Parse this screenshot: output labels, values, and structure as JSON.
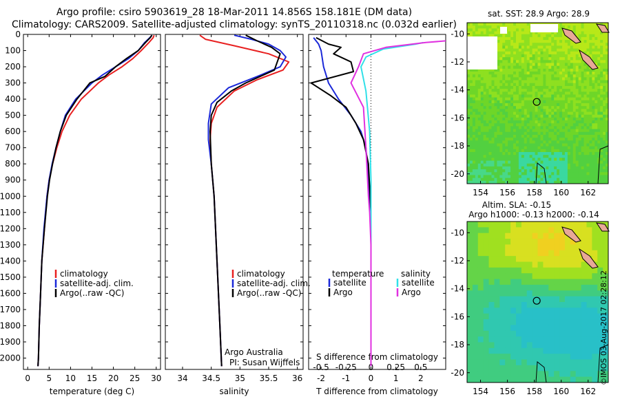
{
  "title": {
    "line1": "Argo profile: csiro 5903619_28 18-Mar-2011 14.856S 158.181E (DM data)",
    "line2": "Climatology: CARS2009. Satellite-adjusted climatology: synTS_20110318.nc (0.032d earlier)"
  },
  "colors": {
    "climatology": "#e82020",
    "satellite": "#1a28d8",
    "argo": "#000000",
    "satellite_salinity": "#30e0e8",
    "argo_salinity": "#e030e0"
  },
  "chart_data": [
    {
      "type": "line",
      "id": "temperature",
      "xlabel": "temperature (deg C)",
      "xlim": [
        -1,
        31
      ],
      "xticks": [
        0,
        5,
        10,
        15,
        20,
        25,
        30
      ],
      "ylim": [
        0,
        2070
      ],
      "yticks": [
        0,
        100,
        200,
        300,
        400,
        500,
        600,
        700,
        800,
        900,
        1000,
        1100,
        1200,
        1300,
        1400,
        1500,
        1600,
        1700,
        1800,
        1900,
        2000
      ],
      "legend": {
        "position": "lower-right",
        "entries": [
          "climatology",
          "satellite-adj. clim.",
          "Argo(..raw -QC)"
        ]
      },
      "series": [
        {
          "name": "climatology",
          "color": "#e82020",
          "points": [
            [
              29.5,
              5
            ],
            [
              29.3,
              20
            ],
            [
              28.3,
              50
            ],
            [
              26.5,
              100
            ],
            [
              24.5,
              150
            ],
            [
              22,
              200
            ],
            [
              19,
              250
            ],
            [
              16.5,
              300
            ],
            [
              12.5,
              400
            ],
            [
              9.8,
              500
            ],
            [
              8,
              600
            ],
            [
              6.8,
              700
            ],
            [
              5.8,
              800
            ],
            [
              5,
              900
            ],
            [
              4.5,
              1000
            ],
            [
              3.9,
              1200
            ],
            [
              3.3,
              1400
            ],
            [
              3,
              1600
            ],
            [
              2.7,
              1800
            ],
            [
              2.5,
              2000
            ],
            [
              2.4,
              2050
            ]
          ]
        },
        {
          "name": "satellite-adj. clim.",
          "color": "#1a28d8",
          "points": [
            [
              29,
              5
            ],
            [
              28.5,
              20
            ],
            [
              27.3,
              50
            ],
            [
              25.8,
              100
            ],
            [
              23.5,
              150
            ],
            [
              20.5,
              200
            ],
            [
              17.5,
              250
            ],
            [
              15,
              300
            ],
            [
              11.2,
              400
            ],
            [
              8.8,
              500
            ],
            [
              7.6,
              600
            ],
            [
              6.6,
              700
            ],
            [
              5.7,
              800
            ],
            [
              5,
              900
            ],
            [
              4.5,
              1000
            ],
            [
              3.8,
              1200
            ],
            [
              3.3,
              1400
            ],
            [
              3,
              1600
            ],
            [
              2.7,
              1800
            ],
            [
              2.5,
              2000
            ],
            [
              2.4,
              2050
            ]
          ]
        },
        {
          "name": "Argo(..raw -QC)",
          "color": "#000000",
          "points": [
            [
              29,
              5
            ],
            [
              28.6,
              20
            ],
            [
              27.5,
              50
            ],
            [
              25.8,
              100
            ],
            [
              23,
              150
            ],
            [
              20.5,
              200
            ],
            [
              18,
              260
            ],
            [
              14.5,
              300
            ],
            [
              11.5,
              400
            ],
            [
              9,
              500
            ],
            [
              7.6,
              600
            ],
            [
              6.6,
              700
            ],
            [
              5.8,
              800
            ],
            [
              5.1,
              900
            ],
            [
              4.6,
              1000
            ],
            [
              3.9,
              1200
            ],
            [
              3.3,
              1400
            ],
            [
              3,
              1600
            ],
            [
              2.7,
              1800
            ],
            [
              2.5,
              2000
            ],
            [
              2.4,
              2050
            ]
          ]
        }
      ]
    },
    {
      "type": "line",
      "id": "salinity",
      "xlabel": "salinity",
      "xlim": [
        33.7,
        36.1
      ],
      "xticks": [
        34,
        34.5,
        35,
        35.5,
        36
      ],
      "ylim": [
        0,
        2070
      ],
      "legend": {
        "position": "lower-right",
        "entries": [
          "climatology",
          "satellite-adj. clim.",
          "Argo(..raw -QC)"
        ]
      },
      "annotation": {
        "line1": "Argo Australia",
        "line2": "PI: Susan Wijffels"
      },
      "series": [
        {
          "name": "climatology",
          "color": "#e82020",
          "points": [
            [
              34.3,
              5
            ],
            [
              34.4,
              30
            ],
            [
              34.9,
              70
            ],
            [
              35.5,
              120
            ],
            [
              35.85,
              170
            ],
            [
              35.75,
              220
            ],
            [
              35.3,
              280
            ],
            [
              34.9,
              350
            ],
            [
              34.6,
              450
            ],
            [
              34.5,
              550
            ],
            [
              34.48,
              650
            ],
            [
              34.5,
              800
            ],
            [
              34.55,
              1000
            ],
            [
              34.6,
              1400
            ],
            [
              34.65,
              1800
            ],
            [
              34.68,
              2050
            ]
          ]
        },
        {
          "name": "satellite-adj. clim.",
          "color": "#1a28d8",
          "points": [
            [
              34.9,
              5
            ],
            [
              35.2,
              30
            ],
            [
              35.5,
              60
            ],
            [
              35.7,
              100
            ],
            [
              35.8,
              140
            ],
            [
              35.7,
              200
            ],
            [
              35.3,
              260
            ],
            [
              34.8,
              330
            ],
            [
              34.5,
              430
            ],
            [
              34.45,
              550
            ],
            [
              34.45,
              650
            ],
            [
              34.5,
              800
            ],
            [
              34.55,
              1000
            ],
            [
              34.6,
              1400
            ],
            [
              34.65,
              1800
            ],
            [
              34.68,
              2050
            ]
          ]
        },
        {
          "name": "Argo(..raw -QC)",
          "color": "#000000",
          "points": [
            [
              35.1,
              5
            ],
            [
              35.3,
              40
            ],
            [
              35.55,
              80
            ],
            [
              35.7,
              120
            ],
            [
              35.65,
              170
            ],
            [
              35.6,
              220
            ],
            [
              35.35,
              260
            ],
            [
              35.1,
              300
            ],
            [
              34.85,
              350
            ],
            [
              34.6,
              420
            ],
            [
              34.5,
              500
            ],
            [
              34.48,
              600
            ],
            [
              34.5,
              800
            ],
            [
              34.55,
              1000
            ],
            [
              34.6,
              1400
            ],
            [
              34.65,
              1800
            ],
            [
              34.68,
              2050
            ]
          ]
        }
      ]
    },
    {
      "type": "line",
      "id": "difference",
      "xlabel": "T difference from climatology",
      "xlim": [
        -2.5,
        3
      ],
      "xticks": [
        -2,
        -1,
        0,
        1,
        2
      ],
      "top_label": "S difference from climatology",
      "top_ticks": [
        "-0.5",
        "-0.25",
        "0",
        "0.25",
        "0.5"
      ],
      "ylim": [
        0,
        2070
      ],
      "legend": {
        "position": "lower-right",
        "temperature_header": "temperature",
        "salinity_header": "salinity",
        "entries": [
          "satellite",
          "Argo",
          "satellite",
          "Argo"
        ]
      },
      "series": [
        {
          "name": "satellite",
          "color": "#1a28d8",
          "points": [
            [
              -2.3,
              20
            ],
            [
              -2.1,
              60
            ],
            [
              -2,
              100
            ],
            [
              -1.9,
              200
            ],
            [
              -1.7,
              300
            ],
            [
              -1.3,
              400
            ],
            [
              -0.8,
              500
            ],
            [
              -0.4,
              600
            ],
            [
              -0.2,
              700
            ],
            [
              -0.1,
              900
            ],
            [
              0,
              1200
            ],
            [
              0,
              2050
            ]
          ]
        },
        {
          "name": "Argo",
          "color": "#000000",
          "points": [
            [
              -2.2,
              20
            ],
            [
              -1.7,
              60
            ],
            [
              -1.2,
              80
            ],
            [
              -1.5,
              120
            ],
            [
              -0.8,
              170
            ],
            [
              -0.7,
              230
            ],
            [
              -2.4,
              300
            ],
            [
              -1.6,
              380
            ],
            [
              -1,
              450
            ],
            [
              -0.6,
              550
            ],
            [
              -0.3,
              650
            ],
            [
              -0.1,
              800
            ],
            [
              0,
              1100
            ],
            [
              0,
              2050
            ]
          ]
        },
        {
          "name": "satellite",
          "color": "#30e0e8",
          "points": [
            [
              2.1,
              50
            ],
            [
              1.8,
              60
            ],
            [
              0.5,
              90
            ],
            [
              -0.2,
              140
            ],
            [
              -0.4,
              200
            ],
            [
              -0.2,
              350
            ],
            [
              -0.05,
              600
            ],
            [
              0,
              900
            ],
            [
              0,
              2050
            ]
          ]
        },
        {
          "name": "Argo",
          "color": "#e030e0",
          "points": [
            [
              3,
              40
            ],
            [
              2.2,
              50
            ],
            [
              0.6,
              80
            ],
            [
              -0.3,
              120
            ],
            [
              -0.5,
              200
            ],
            [
              -0.8,
              300
            ],
            [
              -0.3,
              450
            ],
            [
              -0.2,
              700
            ],
            [
              -0.1,
              1000
            ],
            [
              -0.05,
              1100
            ],
            [
              0,
              1300
            ],
            [
              0,
              2050
            ]
          ]
        }
      ]
    },
    {
      "type": "heatmap",
      "id": "sst_map",
      "title": "sat. SST: 28.9 Argo: 28.9",
      "xticks": [
        "154",
        "156",
        "158",
        "160",
        "162"
      ],
      "yticks": [
        "-10",
        "-12",
        "-14",
        "-16",
        "-18",
        "-20"
      ],
      "marker": {
        "lon": 158.18,
        "lat": -14.86
      }
    },
    {
      "type": "heatmap",
      "id": "sla_map",
      "title_line1": "Altim. SLA: -0.15",
      "title_line2": "Argo h1000: -0.13 h2000: -0.14",
      "xticks": [
        "154",
        "156",
        "158",
        "160",
        "162"
      ],
      "yticks": [
        "-10",
        "-12",
        "-14",
        "-16",
        "-18",
        "-20"
      ],
      "marker": {
        "lon": 158.18,
        "lat": -14.86
      }
    }
  ],
  "watermark": "©IMOS 03-Aug-2017 02:28:12"
}
